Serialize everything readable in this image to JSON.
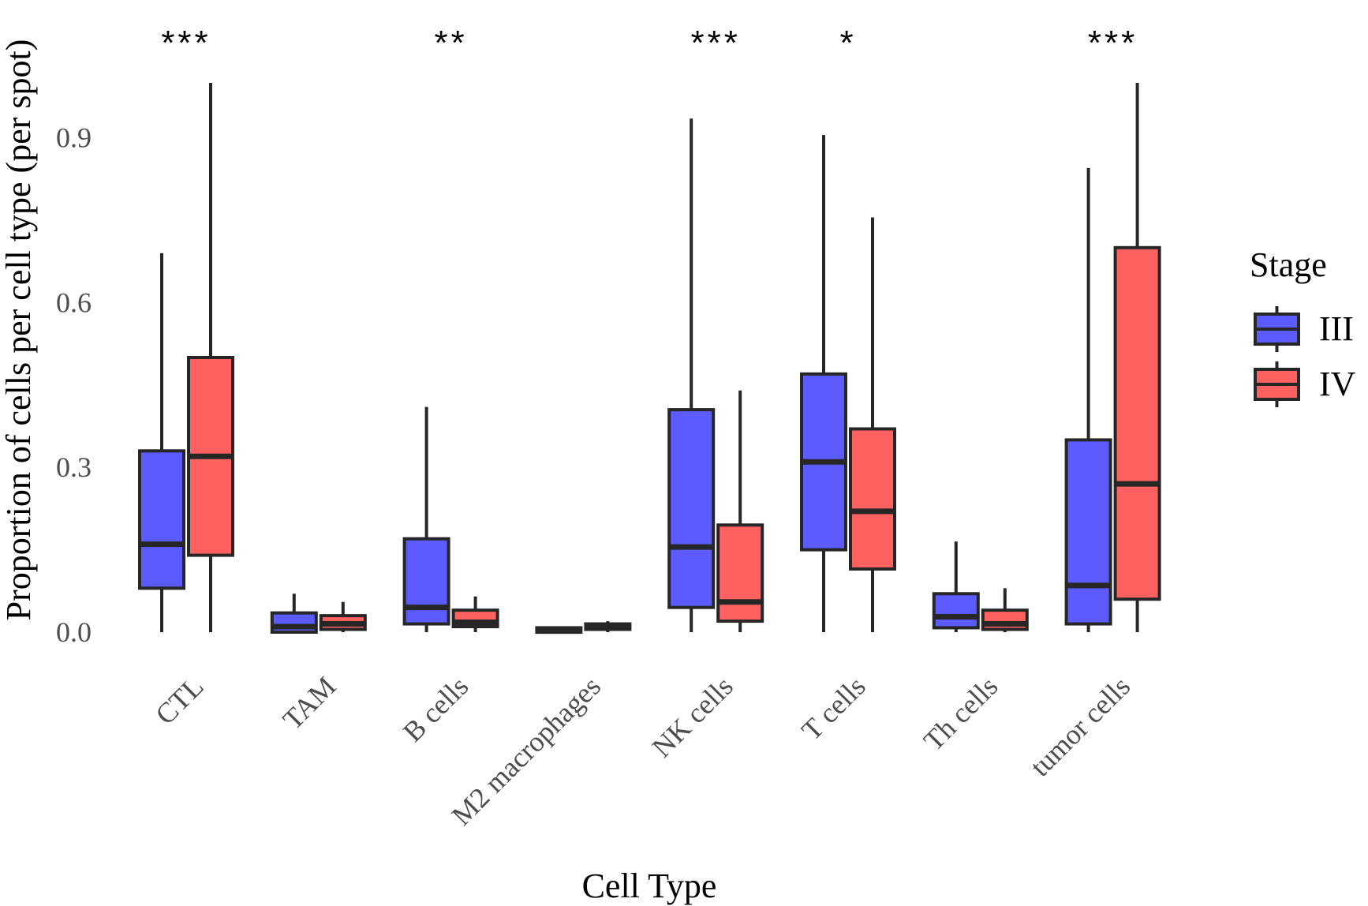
{
  "chart_data": {
    "type": "boxplot",
    "title": "",
    "xlabel": "Cell Type",
    "ylabel": "Proportion of cells per cell type (per spot)",
    "ylim": [
      -0.03,
      1.0
    ],
    "y_ticks": [
      0.0,
      0.3,
      0.6,
      0.9
    ],
    "y_tick_labels": [
      "0.0",
      "0.3",
      "0.6",
      "0.9"
    ],
    "grid": false,
    "legend": {
      "title": "Stage",
      "position": "right",
      "entries": [
        {
          "label": "III",
          "color": "#5B5BFF"
        },
        {
          "label": "IV",
          "color": "#FF6161"
        }
      ]
    },
    "categories": [
      "CTL",
      "TAM",
      "B cells",
      "M2 macrophages",
      "NK cells",
      "T cells",
      "Th cells",
      "tumor cells"
    ],
    "significance": [
      "***",
      "",
      "**",
      "",
      "***",
      "*",
      "",
      "***"
    ],
    "series": [
      {
        "name": "III",
        "color": "#5B5BFF",
        "boxes": [
          {
            "min": 0.0,
            "q1": 0.08,
            "median": 0.16,
            "q3": 0.33,
            "max": 0.69
          },
          {
            "min": 0.0,
            "q1": 0.0,
            "median": 0.01,
            "q3": 0.035,
            "max": 0.07
          },
          {
            "min": 0.0,
            "q1": 0.015,
            "median": 0.045,
            "q3": 0.17,
            "max": 0.41
          },
          {
            "min": 0.0,
            "q1": 0.0,
            "median": 0.002,
            "q3": 0.008,
            "max": 0.01
          },
          {
            "min": 0.0,
            "q1": 0.045,
            "median": 0.155,
            "q3": 0.405,
            "max": 0.935
          },
          {
            "min": 0.0,
            "q1": 0.15,
            "median": 0.31,
            "q3": 0.47,
            "max": 0.905
          },
          {
            "min": 0.0,
            "q1": 0.008,
            "median": 0.028,
            "q3": 0.07,
            "max": 0.165
          },
          {
            "min": 0.0,
            "q1": 0.015,
            "median": 0.085,
            "q3": 0.35,
            "max": 0.845
          }
        ]
      },
      {
        "name": "IV",
        "color": "#FF6161",
        "boxes": [
          {
            "min": 0.0,
            "q1": 0.14,
            "median": 0.32,
            "q3": 0.5,
            "max": 1.0
          },
          {
            "min": 0.0,
            "q1": 0.005,
            "median": 0.015,
            "q3": 0.03,
            "max": 0.055
          },
          {
            "min": 0.0,
            "q1": 0.01,
            "median": 0.018,
            "q3": 0.04,
            "max": 0.065
          },
          {
            "min": 0.0,
            "q1": 0.005,
            "median": 0.01,
            "q3": 0.015,
            "max": 0.02
          },
          {
            "min": 0.0,
            "q1": 0.02,
            "median": 0.055,
            "q3": 0.195,
            "max": 0.44
          },
          {
            "min": 0.0,
            "q1": 0.115,
            "median": 0.22,
            "q3": 0.37,
            "max": 0.755
          },
          {
            "min": 0.0,
            "q1": 0.005,
            "median": 0.015,
            "q3": 0.04,
            "max": 0.08
          },
          {
            "min": 0.0,
            "q1": 0.06,
            "median": 0.27,
            "q3": 0.7,
            "max": 1.0
          }
        ]
      }
    ]
  }
}
